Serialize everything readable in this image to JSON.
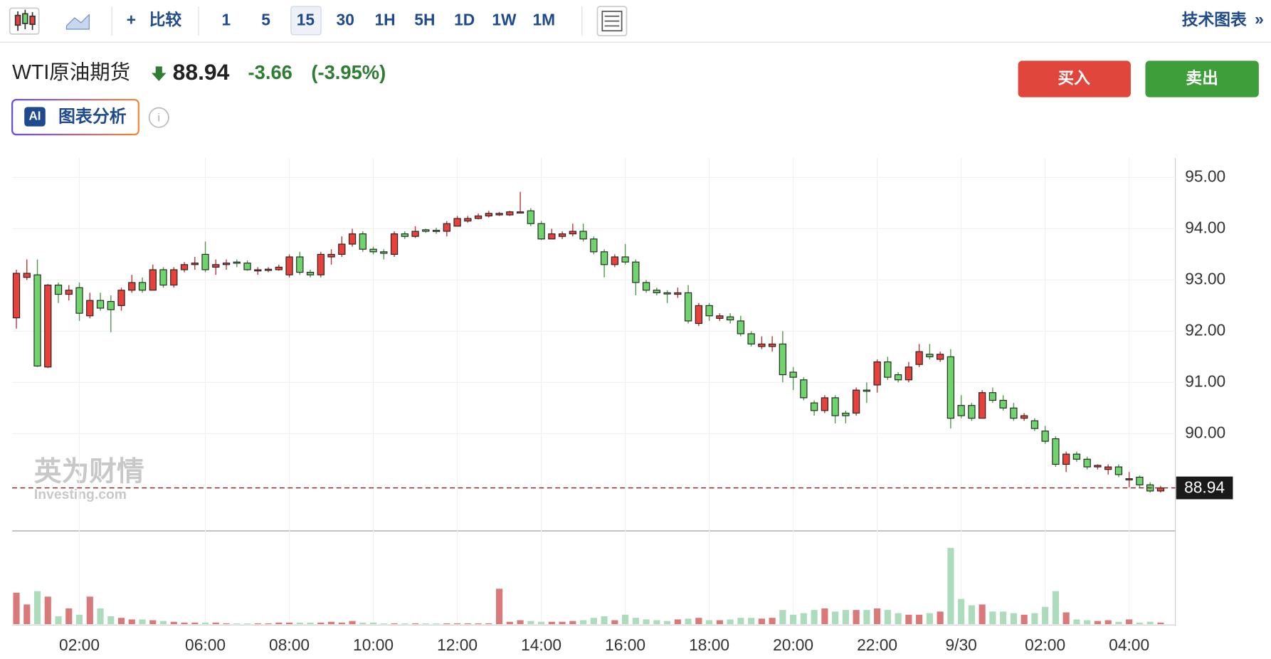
{
  "toolbar": {
    "compare": "比较",
    "intervals": [
      "1",
      "5",
      "15",
      "30",
      "1H",
      "5H",
      "1D",
      "1W",
      "1M"
    ],
    "technical": "技术图表"
  },
  "header": {
    "name": "WTI原油期货",
    "price": "88.94",
    "change": "-3.66",
    "change_pct": "(-3.95%)",
    "buy": "买入",
    "sell": "卖出",
    "ai_badge": "AI",
    "ai_button": "图表分析"
  },
  "watermark": {
    "cn": "英为财情",
    "en": "Investing.com"
  },
  "chart_data": {
    "type": "candlestick",
    "up_color": "#e8403a",
    "down_color": "#6fd46c",
    "volume_up_color": "#d9797a",
    "volume_down_color": "#acdcbb",
    "grid": true,
    "current_price": 88.94,
    "current_price_label": "88.94",
    "open": [
      92.26,
      93.05,
      93.1,
      91.3,
      92.9,
      92.72,
      92.85,
      92.3,
      92.6,
      92.58,
      92.5,
      92.8,
      92.95,
      92.8,
      93.2,
      92.9,
      93.2,
      93.3,
      93.5,
      93.25,
      93.3,
      93.35,
      93.33,
      93.18,
      93.2,
      93.2,
      93.1,
      93.45,
      93.15,
      93.1,
      93.45,
      93.5,
      93.7,
      93.9,
      93.6,
      93.55,
      93.5,
      93.9,
      93.85,
      93.98,
      93.97,
      93.95,
      94.05,
      94.15,
      94.2,
      94.25,
      94.27,
      94.27,
      94.32,
      94.35,
      94.1,
      93.8,
      93.85,
      93.9,
      93.95,
      93.8,
      93.55,
      93.3,
      93.45,
      93.35,
      92.95,
      92.8,
      92.75,
      92.72,
      92.75,
      92.15,
      92.5,
      92.25,
      92.28,
      92.2,
      91.95,
      91.7,
      91.7,
      91.75,
      91.2,
      91.05,
      90.6,
      90.45,
      90.7,
      90.4,
      90.4,
      90.85,
      90.95,
      91.4,
      91.15,
      91.05,
      91.35,
      91.55,
      91.45,
      91.5,
      90.55,
      90.55,
      90.3,
      90.8,
      90.65,
      90.5,
      90.3,
      90.25,
      90.05,
      89.9,
      89.4,
      89.6,
      89.5,
      89.35,
      89.3,
      89.35,
      89.1,
      89.15,
      89.0,
      88.88
    ],
    "high": [
      93.2,
      93.4,
      93.4,
      92.92,
      92.95,
      92.9,
      92.95,
      92.75,
      92.75,
      92.7,
      92.85,
      93.1,
      93.05,
      93.3,
      93.25,
      93.25,
      93.35,
      93.45,
      93.75,
      93.4,
      93.4,
      93.4,
      93.38,
      93.25,
      93.25,
      93.3,
      93.5,
      93.55,
      93.2,
      93.55,
      93.6,
      93.85,
      94.0,
      93.95,
      93.65,
      93.6,
      93.95,
      93.95,
      94.05,
      94.0,
      94.02,
      94.15,
      94.25,
      94.25,
      94.3,
      94.35,
      94.33,
      94.35,
      94.72,
      94.4,
      94.15,
      94.0,
      93.95,
      94.1,
      94.1,
      93.85,
      93.6,
      93.5,
      93.7,
      93.4,
      93.0,
      92.85,
      92.8,
      92.85,
      92.9,
      92.55,
      92.55,
      92.35,
      92.35,
      92.3,
      92.0,
      91.9,
      91.9,
      92.0,
      91.3,
      91.1,
      90.65,
      90.75,
      90.75,
      90.45,
      90.9,
      91.0,
      91.45,
      91.5,
      91.2,
      91.4,
      91.75,
      91.75,
      91.6,
      91.65,
      90.75,
      90.6,
      90.85,
      90.9,
      90.75,
      90.6,
      90.4,
      90.3,
      90.15,
      89.95,
      89.65,
      89.65,
      89.55,
      89.4,
      89.4,
      89.4,
      89.25,
      89.18,
      89.05,
      88.98
    ],
    "low": [
      92.05,
      93.0,
      91.3,
      91.28,
      92.55,
      92.6,
      92.2,
      92.25,
      92.4,
      91.98,
      92.4,
      92.75,
      92.75,
      92.8,
      92.85,
      92.85,
      93.15,
      93.2,
      93.15,
      93.1,
      93.2,
      93.25,
      93.18,
      93.1,
      93.15,
      93.18,
      93.05,
      93.1,
      93.05,
      93.05,
      93.3,
      93.45,
      93.65,
      93.55,
      93.5,
      93.4,
      93.45,
      93.8,
      93.82,
      93.92,
      93.9,
      93.85,
      94.05,
      94.12,
      94.18,
      94.22,
      94.25,
      94.25,
      94.3,
      94.05,
      93.78,
      93.8,
      93.8,
      93.85,
      93.75,
      93.5,
      93.05,
      93.25,
      93.3,
      92.7,
      92.75,
      92.7,
      92.55,
      92.65,
      92.15,
      92.1,
      92.2,
      92.2,
      92.15,
      91.9,
      91.7,
      91.65,
      91.6,
      91.0,
      90.85,
      90.65,
      90.35,
      90.4,
      90.2,
      90.2,
      90.35,
      90.6,
      90.8,
      91.05,
      91.0,
      91.0,
      91.3,
      91.45,
      91.4,
      90.1,
      90.3,
      90.25,
      90.3,
      90.6,
      90.45,
      90.25,
      90.25,
      90.05,
      89.8,
      89.35,
      89.25,
      89.45,
      89.3,
      89.3,
      89.2,
      89.15,
      88.95,
      88.95,
      88.85,
      88.85
    ],
    "close": [
      93.13,
      93.13,
      91.32,
      92.9,
      92.72,
      92.8,
      92.35,
      92.6,
      92.45,
      92.42,
      92.8,
      92.95,
      92.8,
      93.2,
      92.9,
      93.2,
      93.3,
      93.33,
      93.2,
      93.3,
      93.33,
      93.33,
      93.2,
      93.2,
      93.21,
      93.25,
      93.45,
      93.15,
      93.1,
      93.5,
      93.5,
      93.7,
      93.9,
      93.6,
      93.55,
      93.52,
      93.9,
      93.85,
      93.95,
      93.95,
      93.95,
      94.1,
      94.2,
      94.2,
      94.25,
      94.3,
      94.3,
      94.33,
      94.33,
      94.1,
      93.8,
      93.9,
      93.9,
      93.95,
      93.8,
      93.55,
      93.3,
      93.45,
      93.35,
      92.95,
      92.8,
      92.75,
      92.74,
      92.75,
      92.2,
      92.5,
      92.3,
      92.3,
      92.22,
      91.95,
      91.75,
      91.75,
      91.75,
      91.15,
      91.1,
      90.7,
      90.45,
      90.7,
      90.35,
      90.35,
      90.85,
      90.83,
      91.4,
      91.1,
      91.05,
      91.3,
      91.6,
      91.5,
      91.55,
      90.3,
      90.35,
      90.3,
      90.8,
      90.65,
      90.5,
      90.3,
      90.35,
      90.1,
      89.85,
      89.4,
      89.6,
      89.5,
      89.35,
      89.38,
      89.35,
      89.2,
      89.12,
      89.0,
      88.88,
      88.94
    ],
    "volume": [
      40,
      25,
      42,
      35,
      10,
      20,
      12,
      35,
      20,
      10,
      8,
      6,
      6,
      5,
      4,
      3,
      2,
      2,
      2,
      2,
      1,
      1,
      1,
      1,
      1,
      2,
      2,
      2,
      2,
      2,
      3,
      2,
      4,
      2,
      2,
      1,
      1,
      1,
      1,
      1,
      1,
      1,
      1,
      1,
      1,
      1,
      45,
      3,
      5,
      4,
      3,
      3,
      3,
      4,
      5,
      8,
      10,
      5,
      12,
      8,
      6,
      5,
      4,
      6,
      7,
      8,
      5,
      5,
      6,
      8,
      8,
      7,
      8,
      18,
      12,
      14,
      18,
      20,
      16,
      18,
      18,
      18,
      20,
      18,
      14,
      12,
      12,
      14,
      16,
      97,
      32,
      24,
      25,
      16,
      16,
      14,
      12,
      14,
      22,
      42,
      15,
      6,
      5,
      4,
      5,
      3,
      6,
      2,
      3,
      2
    ],
    "xlim": [
      -0.4,
      110.4
    ],
    "xticks": [
      {
        "value": 6,
        "label": "02:00"
      },
      {
        "value": 18,
        "label": "06:00"
      },
      {
        "value": 26,
        "label": "08:00"
      },
      {
        "value": 34,
        "label": "10:00"
      },
      {
        "value": 42,
        "label": "12:00"
      },
      {
        "value": 50,
        "label": "14:00"
      },
      {
        "value": 58,
        "label": "16:00"
      },
      {
        "value": 66,
        "label": "18:00"
      },
      {
        "value": 74,
        "label": "20:00"
      },
      {
        "value": 82,
        "label": "22:00"
      },
      {
        "value": 90,
        "label": "9/30"
      },
      {
        "value": 98,
        "label": "02:00"
      },
      {
        "value": 106,
        "label": "04:00"
      }
    ],
    "ylim": [
      88.1,
      95.38
    ],
    "yticks": [
      {
        "value": 90,
        "label": "90.00"
      },
      {
        "value": 91,
        "label": "91.00"
      },
      {
        "value": 92,
        "label": "92.00"
      },
      {
        "value": 93,
        "label": "93.00"
      },
      {
        "value": 94,
        "label": "94.00"
      },
      {
        "value": 95,
        "label": "95.00"
      }
    ],
    "volume_lim": [
      0,
      100
    ]
  }
}
